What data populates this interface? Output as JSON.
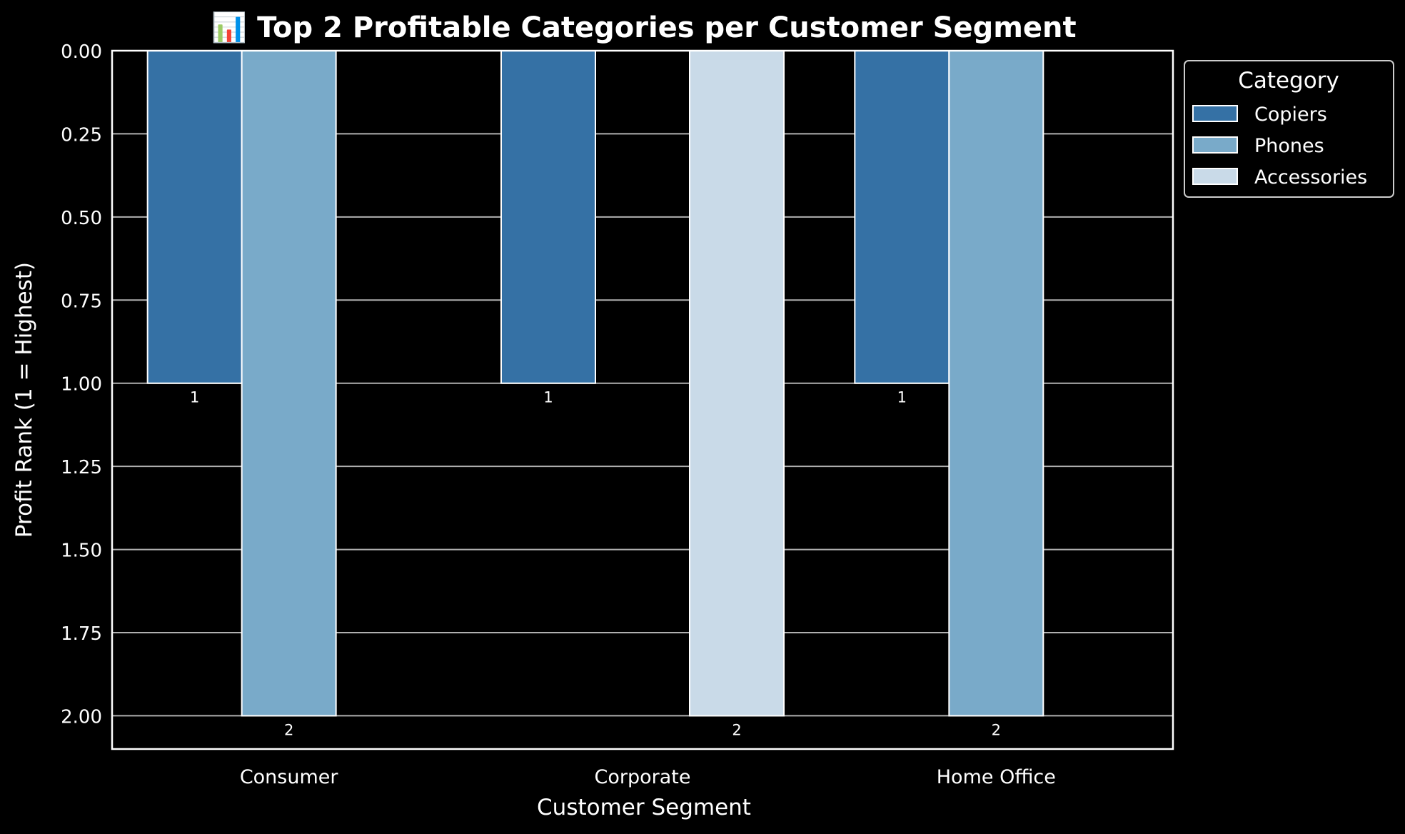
{
  "chart_data": {
    "type": "bar",
    "title": "📊 Top 2 Profitable Categories per Customer Segment",
    "xlabel": "Customer Segment",
    "ylabel": "Profit Rank (1 = Highest)",
    "categories": [
      "Consumer",
      "Corporate",
      "Home Office"
    ],
    "series": [
      {
        "name": "Copiers",
        "color": "#3571a5",
        "values": [
          1,
          1,
          1
        ]
      },
      {
        "name": "Phones",
        "color": "#79aac9",
        "values": [
          2,
          null,
          2
        ]
      },
      {
        "name": "Accessories",
        "color": "#c9dae8",
        "values": [
          null,
          2,
          null
        ]
      }
    ],
    "ylim": [
      2.1,
      0
    ],
    "y_inverted": true,
    "yticks": [
      "0.00",
      "0.25",
      "0.50",
      "0.75",
      "1.00",
      "1.25",
      "1.50",
      "1.75",
      "2.00"
    ],
    "legend": {
      "title": "Category",
      "placement": "upper-right-outside"
    },
    "grid": true,
    "background": "#000000",
    "foreground": "#ffffff"
  }
}
